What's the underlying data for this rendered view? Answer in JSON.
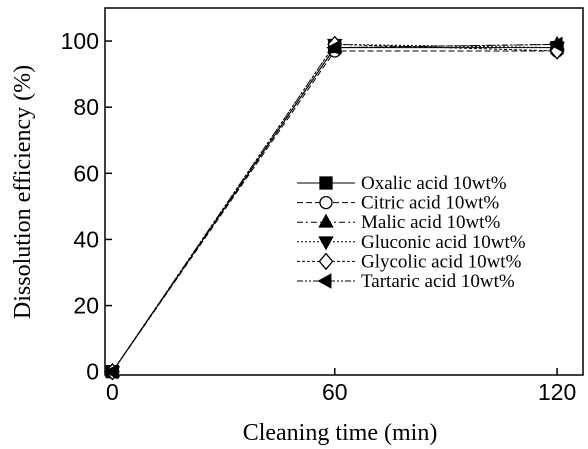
{
  "chart_data": {
    "type": "line",
    "x_label": "Cleaning time (min)",
    "y_label": "Dissolution efficiency (%)",
    "x": [
      0,
      60,
      120
    ],
    "xlim": [
      -2,
      127
    ],
    "xticks": [
      0,
      60,
      120
    ],
    "ylim": [
      -1,
      110
    ],
    "yticks": [
      0,
      20,
      40,
      60,
      80,
      100
    ],
    "legend": "right",
    "series": [
      {
        "name": "Oxalic acid 10wt%",
        "color": "#000000",
        "marker": "square",
        "fill": true,
        "dash": "solid",
        "values": [
          0,
          98,
          98
        ]
      },
      {
        "name": "Citric acid 10wt%",
        "color": "#000000",
        "marker": "circle",
        "fill": false,
        "dash": "dashed",
        "values": [
          0,
          97,
          97
        ]
      },
      {
        "name": "Malic acid 10wt%",
        "color": "#000000",
        "marker": "triangle-up",
        "fill": true,
        "dash": "dashdot",
        "values": [
          0,
          98,
          99
        ]
      },
      {
        "name": "Gluconic acid 10wt%",
        "color": "#000000",
        "marker": "triangle-down",
        "fill": true,
        "dash": "dotted",
        "values": [
          0,
          99,
          98
        ]
      },
      {
        "name": "Glycolic acid 10wt%",
        "color": "#000000",
        "marker": "diamond",
        "fill": false,
        "dash": "shortdash",
        "values": [
          0,
          99,
          97
        ]
      },
      {
        "name": "Tartaric acid 10wt%",
        "color": "#000000",
        "marker": "triangle-left",
        "fill": true,
        "dash": "dashdotdot",
        "values": [
          0,
          98,
          99
        ]
      }
    ]
  }
}
